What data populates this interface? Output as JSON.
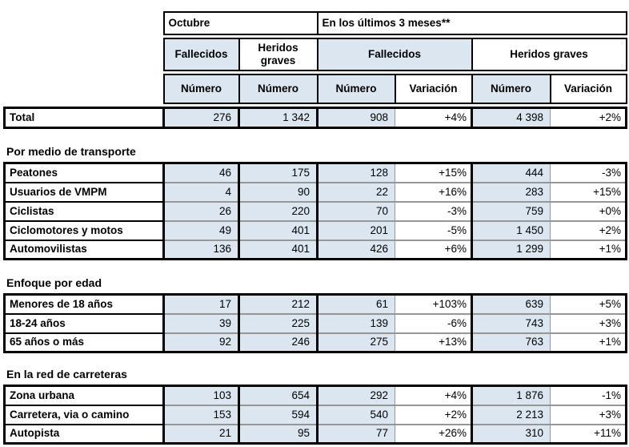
{
  "header": {
    "octubre_label": "Octubre",
    "ultimos_label": "En los últimos 3 meses**",
    "fallecidos_label": "Fallecidos",
    "heridos_label": "Heridos graves",
    "numero_label": "Número",
    "variacion_label": "Variación"
  },
  "total": {
    "label": "Total",
    "c1": "276",
    "c2": "1 342",
    "c3": "908",
    "c4": "+4%",
    "c5": "4 398",
    "c6": "+2%"
  },
  "sections": [
    {
      "title": "Por medio de transporte",
      "rows": [
        {
          "label": "Peatones",
          "c1": "46",
          "c2": "175",
          "c3": "128",
          "c4": "+15%",
          "c5": "444",
          "c6": "-3%"
        },
        {
          "label": "Usuarios de VMPM",
          "c1": "4",
          "c2": "90",
          "c3": "22",
          "c4": "+16%",
          "c5": "283",
          "c6": "+15%"
        },
        {
          "label": "Ciclistas",
          "c1": "26",
          "c2": "220",
          "c3": "70",
          "c4": "-3%",
          "c5": "759",
          "c6": "+0%"
        },
        {
          "label": "Ciclomotores y motos",
          "c1": "49",
          "c2": "401",
          "c3": "201",
          "c4": "-5%",
          "c5": "1 450",
          "c6": "+2%"
        },
        {
          "label": "Automovilistas",
          "c1": "136",
          "c2": "401",
          "c3": "426",
          "c4": "+6%",
          "c5": "1 299",
          "c6": "+1%"
        }
      ]
    },
    {
      "title": "Enfoque por edad",
      "rows": [
        {
          "label": "Menores de 18 años",
          "c1": "17",
          "c2": "212",
          "c3": "61",
          "c4": "+103%",
          "c5": "639",
          "c6": "+5%"
        },
        {
          "label": "18-24 años",
          "c1": "39",
          "c2": "225",
          "c3": "139",
          "c4": "-6%",
          "c5": "743",
          "c6": "+3%"
        },
        {
          "label": "65 años o más",
          "c1": "92",
          "c2": "246",
          "c3": "275",
          "c4": "+13%",
          "c5": "763",
          "c6": "+1%"
        }
      ]
    },
    {
      "title": "En la red de carreteras",
      "rows": [
        {
          "label": "Zona urbana",
          "c1": "103",
          "c2": "654",
          "c3": "292",
          "c4": "+4%",
          "c5": "1 876",
          "c6": "-1%"
        },
        {
          "label": "Carretera, via o camino",
          "c1": "153",
          "c2": "594",
          "c3": "540",
          "c4": "+2%",
          "c5": "2 213",
          "c6": "+3%"
        },
        {
          "label": "Autopista",
          "c1": "21",
          "c2": "95",
          "c3": "77",
          "c4": "+26%",
          "c5": "310",
          "c6": "+11%"
        }
      ]
    }
  ],
  "colors": {
    "cell_blue": "#dce6f1",
    "border_black": "#000000",
    "border_gray": "#969696"
  }
}
